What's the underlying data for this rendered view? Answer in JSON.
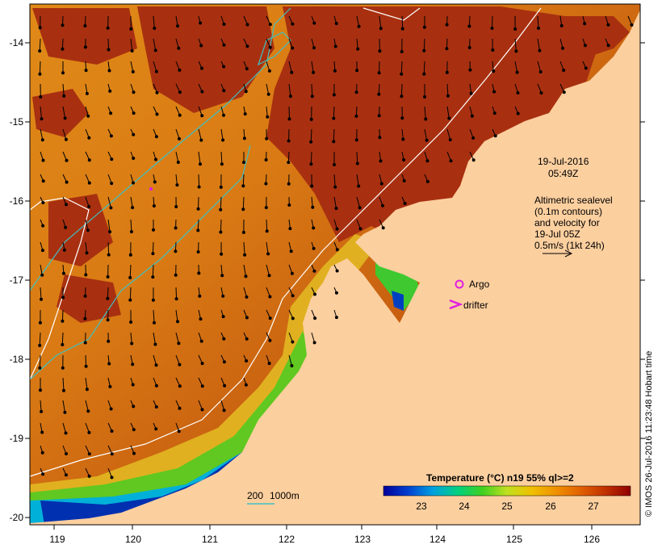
{
  "map": {
    "lon_ticks": [
      "119",
      "120",
      "121",
      "122",
      "123",
      "124",
      "125",
      "126"
    ],
    "lat_ticks": [
      "-14",
      "-15",
      "-16",
      "-17",
      "-18",
      "-19",
      "-20"
    ],
    "land_color": "#fccf9f",
    "deep_warm_color": "#a83010",
    "contour_color": "#ffffff",
    "isobath_color": "#40c0c0",
    "vector_color": "#000000"
  },
  "annotations": {
    "date": "19-Jul-2016",
    "time": "05:49Z",
    "alt_line1": "Altimetric sealevel",
    "alt_line2": "(0.1m contours)",
    "alt_line3": "and velocity for",
    "alt_line4": "19-Jul 05Z",
    "alt_line5": "0.5m/s (1kt 24h)",
    "argo_label": "Argo",
    "drifter_label": "drifter",
    "marker_color": "#e020e0"
  },
  "isobath_legend": {
    "label_200": "200",
    "label_1000": "1000m"
  },
  "colorbar": {
    "title": "Temperature (°C) n19 55% ql>=2",
    "ticks": [
      "23",
      "24",
      "25",
      "26",
      "27"
    ],
    "stops": [
      "#00009a",
      "#0040d0",
      "#00a0e0",
      "#00d080",
      "#40d020",
      "#c0e020",
      "#f0c000",
      "#f09000",
      "#e06000",
      "#c03000",
      "#900000"
    ]
  },
  "credit": "© IMOS 26-Jul-2016 11:23:48 Hobart time"
}
